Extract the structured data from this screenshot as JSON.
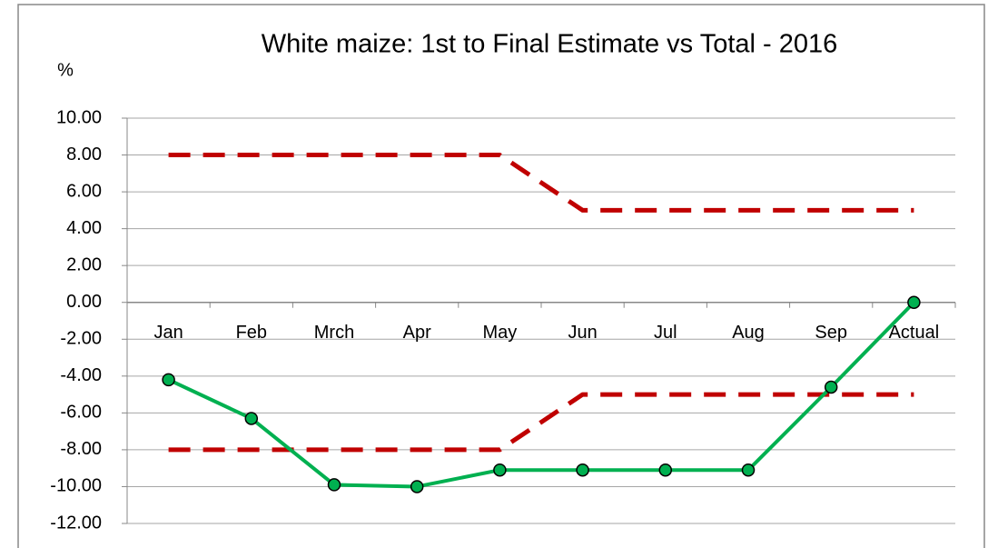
{
  "chart_data": {
    "type": "line",
    "title": "White maize: 1st to Final Estimate vs Total - 2016",
    "y_label": "%",
    "categories": [
      "Jan",
      "Feb",
      "Mrch",
      "Apr",
      "May",
      "Jun",
      "Jul",
      "Aug",
      "Sep",
      "Actual"
    ],
    "series": [
      {
        "color": "#c00000",
        "dashed": true,
        "values": [
          8,
          8,
          8,
          8,
          8,
          5,
          5,
          5,
          5,
          5
        ]
      },
      {
        "color": "#c00000",
        "dashed": true,
        "values": [
          -8,
          -8,
          -8,
          -8,
          -8,
          -5,
          -5,
          -5,
          -5,
          -5
        ]
      },
      {
        "color": "#00b050",
        "markers": true,
        "values": [
          -4.2,
          -6.3,
          -9.9,
          -10.0,
          -9.1,
          -9.1,
          -9.1,
          -9.1,
          -4.6,
          0.0
        ]
      }
    ],
    "ylim": [
      -12,
      10
    ],
    "yticks": [
      {
        "value": -12,
        "label": "-12.00"
      },
      {
        "value": -10,
        "label": "-10.00"
      },
      {
        "value": -8,
        "label": "-8.00"
      },
      {
        "value": -6,
        "label": "-6.00"
      },
      {
        "value": -4,
        "label": "-4.00"
      },
      {
        "value": -2,
        "label": "-2.00"
      },
      {
        "value": 0,
        "label": "0.00"
      },
      {
        "value": 2,
        "label": "2.00"
      },
      {
        "value": 4,
        "label": "4.00"
      },
      {
        "value": 6,
        "label": "6.00"
      },
      {
        "value": 8,
        "label": "8.00"
      },
      {
        "value": 10,
        "label": "10.00"
      }
    ],
    "grid": true
  }
}
